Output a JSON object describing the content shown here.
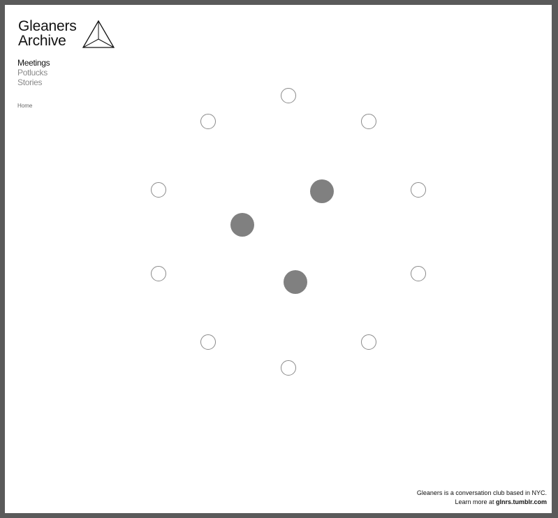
{
  "site": {
    "title_line1": "Gleaners",
    "title_line2": "Archive",
    "logo_icon": "triangle-icon"
  },
  "nav": {
    "items": [
      {
        "label": "Meetings",
        "active": true
      },
      {
        "label": "Potlucks",
        "active": false
      },
      {
        "label": "Stories",
        "active": false
      }
    ],
    "home_label": "Home"
  },
  "graph": {
    "node_colors": {
      "empty_fill": "#ffffff",
      "empty_stroke": "#8a8a8a",
      "filled": "#808080"
    }
  },
  "footer": {
    "line1": "Gleaners is a conversation club based in NYC.",
    "line2_prefix": "Learn more at ",
    "line2_link": "glnrs.tumblr.com"
  }
}
